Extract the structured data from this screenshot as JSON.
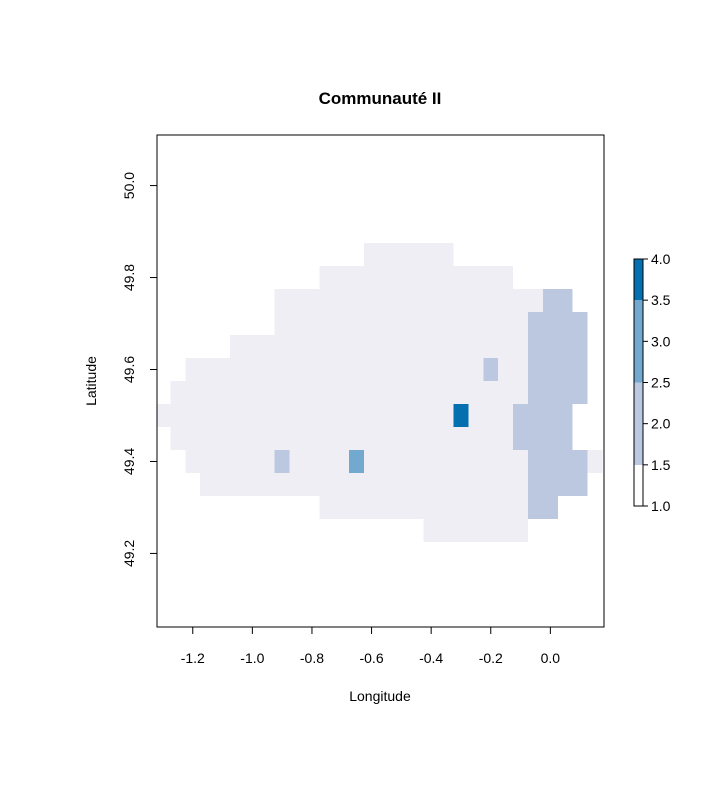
{
  "chart_data": {
    "type": "heatmap",
    "title": "Communauté II",
    "xlabel": "Longitude",
    "ylabel": "Latitude",
    "xlim": [
      -1.32,
      0.18
    ],
    "ylim": [
      49.04,
      50.11
    ],
    "x_ticks": [
      -1.2,
      -1.0,
      -0.8,
      -0.6,
      -0.4,
      -0.2,
      0.0
    ],
    "x_tick_labels": [
      "-1.2",
      "-1.0",
      "-0.8",
      "-0.6",
      "-0.4",
      "-0.2",
      "0.0"
    ],
    "y_ticks": [
      49.2,
      49.4,
      49.6,
      49.8,
      50.0
    ],
    "y_tick_labels": [
      "49.2",
      "49.4",
      "49.6",
      "49.8",
      "50.0"
    ],
    "grid": false,
    "legend_position": "right",
    "colorbar": {
      "breaks": [
        1.0,
        1.5,
        2.0,
        2.5,
        3.0,
        3.5,
        4.0
      ],
      "tick_labels": [
        "1.0",
        "1.5",
        "2.0",
        "2.5",
        "3.0",
        "3.5",
        "4.0"
      ],
      "colors": [
        "#ffffff",
        "#f0eef5",
        "#bcc8e0",
        "#bcc8e0",
        "#74a9cf",
        "#74a9cf",
        "#0570b0"
      ],
      "bands": [
        {
          "from": 1.0,
          "to": 1.5,
          "color": "#ffffff"
        },
        {
          "from": 1.5,
          "to": 2.5,
          "color": "#bcc8e0"
        },
        {
          "from": 2.5,
          "to": 3.5,
          "color": "#74a9cf"
        },
        {
          "from": 3.5,
          "to": 4.0,
          "color": "#0570b0"
        }
      ]
    },
    "cell_width_deg": 0.05,
    "cell_height_deg": 0.05,
    "value_colors": {
      "2": "#f0eef5",
      "3": "#bcc8e0",
      "4": "#74a9cf",
      "5": "#0570b0"
    },
    "cells": [
      {
        "lat": 49.85,
        "lon_from": -0.625,
        "lon_to": -0.325,
        "value": 2
      },
      {
        "lat": 49.8,
        "lon_from": -0.775,
        "lon_to": -0.125,
        "value": 2
      },
      {
        "lat": 49.75,
        "lon_from": -0.925,
        "lon_to": -0.025,
        "value": 2
      },
      {
        "lat": 49.75,
        "lon_from": -0.025,
        "lon_to": 0.075,
        "value": 3
      },
      {
        "lat": 49.7,
        "lon_from": -0.925,
        "lon_to": -0.075,
        "value": 2
      },
      {
        "lat": 49.7,
        "lon_from": -0.075,
        "lon_to": 0.125,
        "value": 3
      },
      {
        "lat": 49.65,
        "lon_from": -1.075,
        "lon_to": -0.075,
        "value": 2
      },
      {
        "lat": 49.65,
        "lon_from": -0.075,
        "lon_to": 0.125,
        "value": 3
      },
      {
        "lat": 49.6,
        "lon_from": -1.225,
        "lon_to": -0.225,
        "value": 2
      },
      {
        "lat": 49.6,
        "lon_from": -0.225,
        "lon_to": -0.175,
        "value": 3
      },
      {
        "lat": 49.6,
        "lon_from": -0.175,
        "lon_to": -0.075,
        "value": 2
      },
      {
        "lat": 49.6,
        "lon_from": -0.075,
        "lon_to": 0.125,
        "value": 3
      },
      {
        "lat": 49.55,
        "lon_from": -1.275,
        "lon_to": -0.075,
        "value": 2
      },
      {
        "lat": 49.55,
        "lon_from": -0.075,
        "lon_to": 0.125,
        "value": 3
      },
      {
        "lat": 49.5,
        "lon_from": -1.325,
        "lon_to": -0.325,
        "value": 2
      },
      {
        "lat": 49.5,
        "lon_from": -0.325,
        "lon_to": -0.275,
        "value": 5
      },
      {
        "lat": 49.5,
        "lon_from": -0.275,
        "lon_to": -0.125,
        "value": 2
      },
      {
        "lat": 49.5,
        "lon_from": -0.125,
        "lon_to": 0.075,
        "value": 3
      },
      {
        "lat": 49.45,
        "lon_from": -1.275,
        "lon_to": -0.125,
        "value": 2
      },
      {
        "lat": 49.45,
        "lon_from": -0.125,
        "lon_to": 0.075,
        "value": 3
      },
      {
        "lat": 49.4,
        "lon_from": -1.225,
        "lon_to": -0.925,
        "value": 2
      },
      {
        "lat": 49.4,
        "lon_from": -0.925,
        "lon_to": -0.875,
        "value": 3
      },
      {
        "lat": 49.4,
        "lon_from": -0.875,
        "lon_to": -0.675,
        "value": 2
      },
      {
        "lat": 49.4,
        "lon_from": -0.675,
        "lon_to": -0.625,
        "value": 4
      },
      {
        "lat": 49.4,
        "lon_from": -0.625,
        "lon_to": -0.075,
        "value": 2
      },
      {
        "lat": 49.4,
        "lon_from": -0.075,
        "lon_to": 0.125,
        "value": 3
      },
      {
        "lat": 49.4,
        "lon_from": 0.125,
        "lon_to": 0.175,
        "value": 2
      },
      {
        "lat": 49.35,
        "lon_from": -1.175,
        "lon_to": -0.075,
        "value": 2
      },
      {
        "lat": 49.35,
        "lon_from": -0.075,
        "lon_to": 0.125,
        "value": 3
      },
      {
        "lat": 49.3,
        "lon_from": -0.775,
        "lon_to": -0.075,
        "value": 2
      },
      {
        "lat": 49.3,
        "lon_from": -0.075,
        "lon_to": 0.025,
        "value": 3
      },
      {
        "lat": 49.25,
        "lon_from": -0.425,
        "lon_to": -0.075,
        "value": 2
      }
    ]
  }
}
